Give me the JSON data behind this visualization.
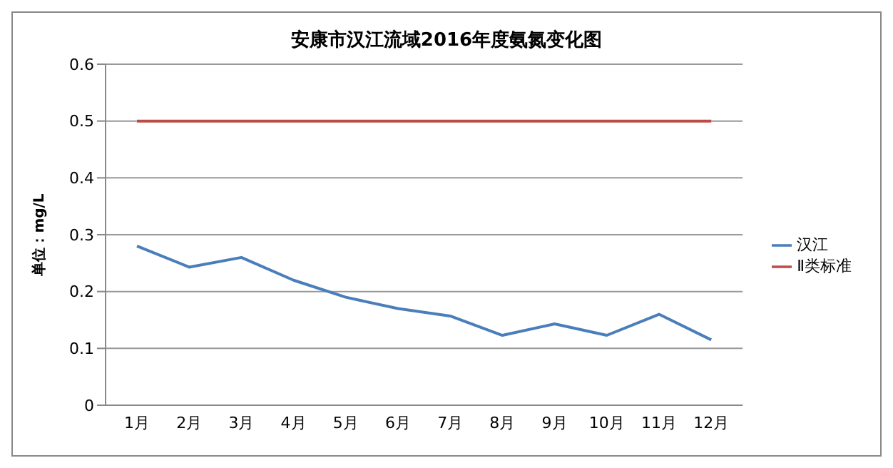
{
  "chart_data": {
    "type": "line",
    "title": "安康市汉江流域2016年度氨氮变化图",
    "ylabel": "单位：mg/L",
    "categories": [
      "1月",
      "2月",
      "3月",
      "4月",
      "5月",
      "6月",
      "7月",
      "8月",
      "9月",
      "10月",
      "11月",
      "12月"
    ],
    "series": [
      {
        "name": "汉江",
        "color": "#4a7ebb",
        "values": [
          0.28,
          0.243,
          0.26,
          0.22,
          0.19,
          0.17,
          0.157,
          0.123,
          0.143,
          0.123,
          0.16,
          0.115
        ]
      },
      {
        "name": "Ⅱ类标准",
        "color": "#be4b48",
        "values": [
          0.5,
          0.5,
          0.5,
          0.5,
          0.5,
          0.5,
          0.5,
          0.5,
          0.5,
          0.5,
          0.5,
          0.5
        ]
      }
    ],
    "ylim": [
      0,
      0.6
    ],
    "yticks": [
      0,
      0.1,
      0.2,
      0.3,
      0.4,
      0.5,
      0.6
    ],
    "grid": "y",
    "legend": "right",
    "marker": "none",
    "line_style": "solid"
  }
}
